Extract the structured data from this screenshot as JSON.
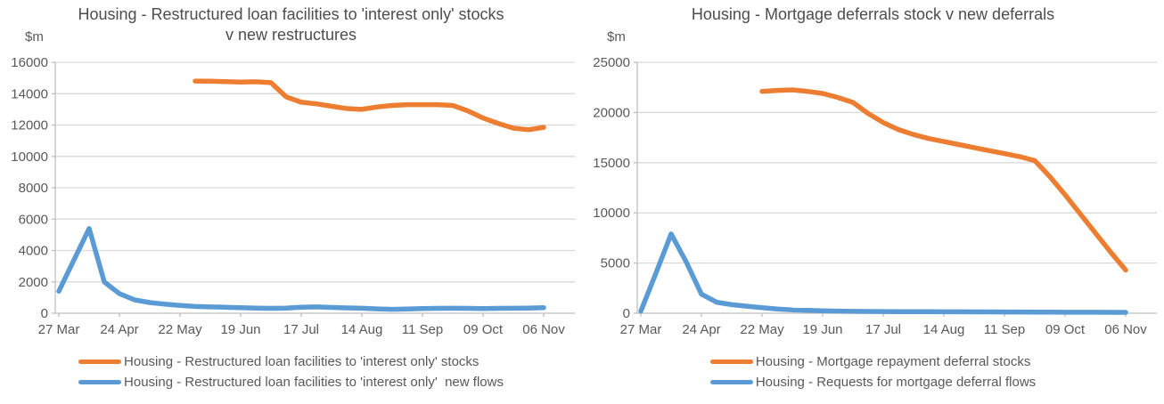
{
  "chart_data": [
    {
      "type": "line",
      "title": "Housing - Restructured loan facilities to 'interest only' stocks v new restructures",
      "ylabel": "$m",
      "ylim": [
        0,
        16000
      ],
      "y_tick_interval": 2000,
      "grid": true,
      "legend_position": "bottom",
      "x_tick_labels": [
        "27 Mar",
        "24 Apr",
        "22 May",
        "19 Jun",
        "17 Jul",
        "14 Aug",
        "11 Sep",
        "09 Oct",
        "06 Nov"
      ],
      "x": [
        "27 Mar",
        "03 Apr",
        "10 Apr",
        "17 Apr",
        "24 Apr",
        "01 May",
        "08 May",
        "15 May",
        "22 May",
        "29 May",
        "05 Jun",
        "12 Jun",
        "19 Jun",
        "26 Jun",
        "03 Jul",
        "10 Jul",
        "17 Jul",
        "24 Jul",
        "31 Jul",
        "07 Aug",
        "14 Aug",
        "21 Aug",
        "28 Aug",
        "04 Sep",
        "11 Sep",
        "18 Sep",
        "25 Sep",
        "02 Oct",
        "09 Oct",
        "16 Oct",
        "23 Oct",
        "30 Oct",
        "06 Nov"
      ],
      "series": [
        {
          "name": "Housing - Restructured loan facilities to 'interest only' stocks",
          "color": "#ED7D31",
          "values": [
            null,
            null,
            null,
            null,
            null,
            null,
            null,
            null,
            null,
            14800,
            14790,
            14770,
            14740,
            14760,
            14700,
            13800,
            13450,
            13350,
            13200,
            13050,
            13000,
            13150,
            13250,
            13300,
            13300,
            13300,
            13250,
            12900,
            12450,
            12100,
            11800,
            11700,
            11850
          ]
        },
        {
          "name": "Housing - Restructured loan facilities to 'interest only'  new flows",
          "color": "#5B9BD5",
          "values": [
            1400,
            3400,
            5400,
            2000,
            1250,
            850,
            680,
            580,
            500,
            430,
            400,
            380,
            350,
            330,
            310,
            330,
            380,
            400,
            370,
            340,
            320,
            280,
            250,
            270,
            300,
            310,
            320,
            310,
            300,
            310,
            320,
            330,
            350
          ]
        }
      ]
    },
    {
      "type": "line",
      "title": "Housing - Mortgage deferrals stock v new deferrals",
      "ylabel": "$m",
      "ylim": [
        0,
        25000
      ],
      "y_tick_interval": 5000,
      "grid": true,
      "legend_position": "bottom",
      "x_tick_labels": [
        "27 Mar",
        "24 Apr",
        "22 May",
        "19 Jun",
        "17 Jul",
        "14 Aug",
        "11 Sep",
        "09 Oct",
        "06 Nov"
      ],
      "x": [
        "27 Mar",
        "03 Apr",
        "10 Apr",
        "17 Apr",
        "24 Apr",
        "01 May",
        "08 May",
        "15 May",
        "22 May",
        "29 May",
        "05 Jun",
        "12 Jun",
        "19 Jun",
        "26 Jun",
        "03 Jul",
        "10 Jul",
        "17 Jul",
        "24 Jul",
        "31 Jul",
        "07 Aug",
        "14 Aug",
        "21 Aug",
        "28 Aug",
        "04 Sep",
        "11 Sep",
        "18 Sep",
        "25 Sep",
        "02 Oct",
        "09 Oct",
        "16 Oct",
        "23 Oct",
        "30 Oct",
        "06 Nov"
      ],
      "series": [
        {
          "name": "Housing - Mortgage repayment deferral stocks",
          "color": "#ED7D31",
          "values": [
            null,
            null,
            null,
            null,
            null,
            null,
            null,
            null,
            22100,
            22200,
            22250,
            22100,
            21900,
            21500,
            21000,
            19900,
            19000,
            18300,
            17800,
            17400,
            17100,
            16800,
            16500,
            16200,
            15900,
            15600,
            15200,
            13600,
            11800,
            9900,
            8000,
            6100,
            4300
          ]
        },
        {
          "name": "Housing - Requests for mortgage deferral flows",
          "color": "#5B9BD5",
          "values": [
            200,
            4000,
            7900,
            5100,
            1900,
            1100,
            850,
            700,
            560,
            420,
            330,
            280,
            240,
            210,
            190,
            180,
            170,
            160,
            150,
            150,
            140,
            140,
            130,
            130,
            120,
            120,
            110,
            110,
            100,
            100,
            100,
            90,
            90
          ]
        }
      ]
    }
  ],
  "style": {
    "gridline_color": "#D9D9D9",
    "axis_color": "#BFBFBF",
    "text_color": "#595959"
  }
}
